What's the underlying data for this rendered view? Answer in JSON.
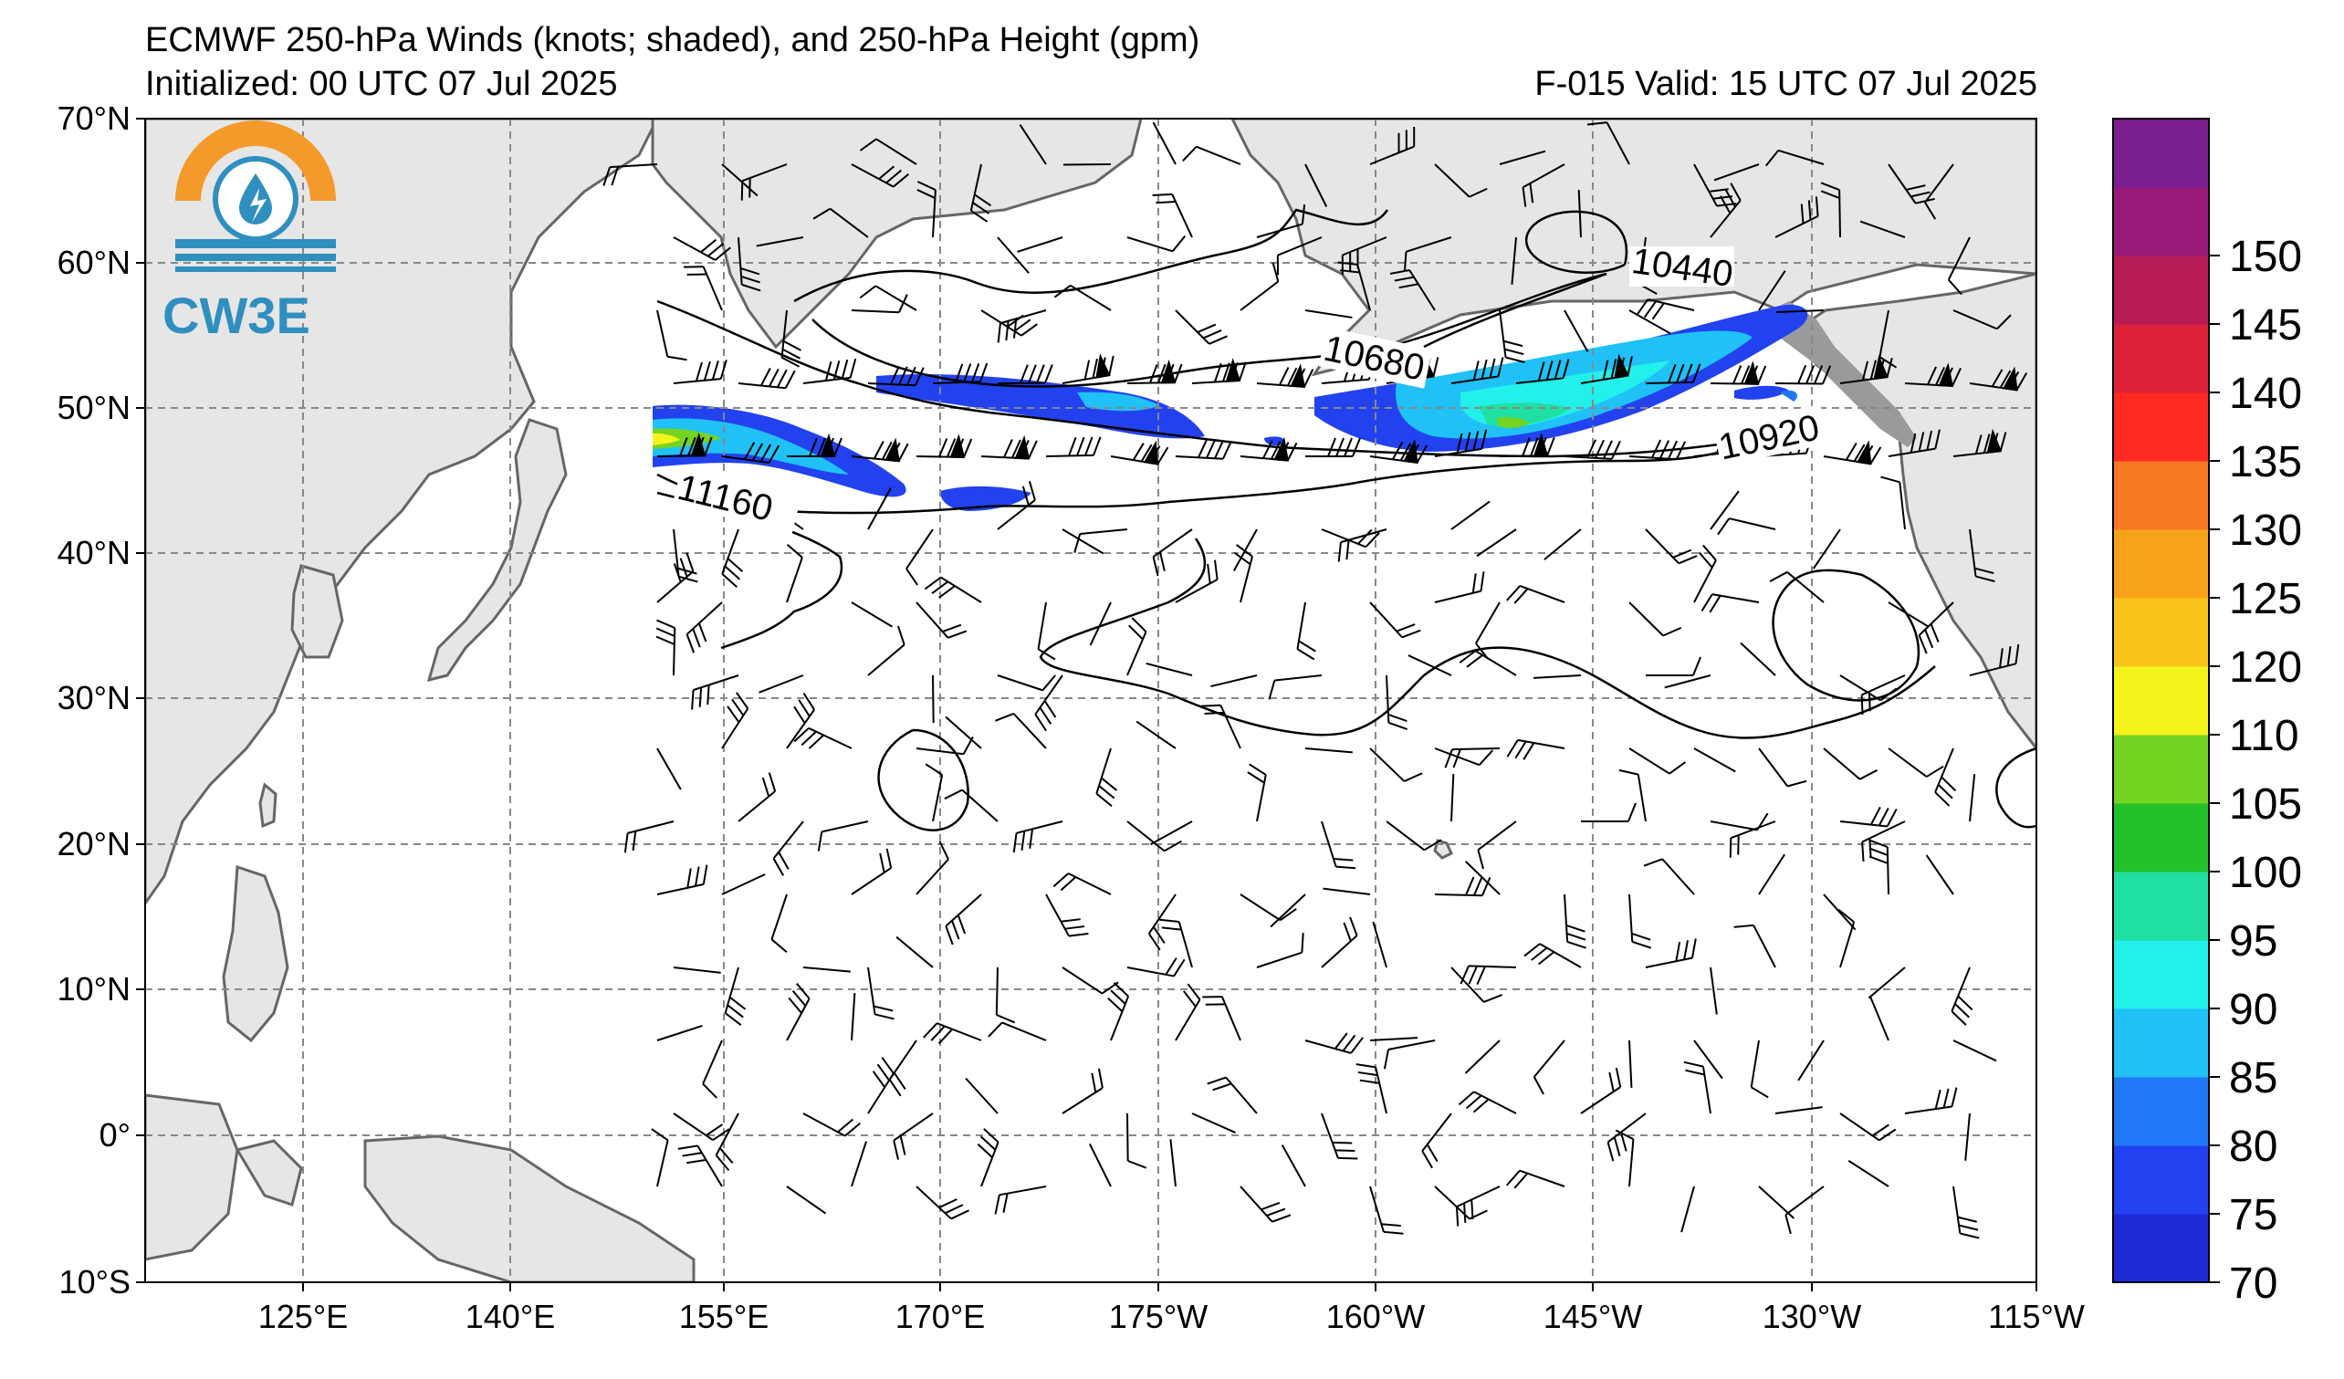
{
  "header": {
    "title": "ECMWF 250-hPa Winds (knots; shaded), and 250-hPa Height (gpm)",
    "initialized": "Initialized: 00 UTC 07 Jul 2025",
    "valid": "F-015  Valid: 15 UTC 07 Jul 2025"
  },
  "logo": {
    "text": "CW3E",
    "colors": {
      "orange": "#f39a2b",
      "blue": "#2f8fbf"
    }
  },
  "map": {
    "lat_labels": [
      "70°N",
      "60°N",
      "50°N",
      "40°N",
      "30°N",
      "20°N",
      "10°N",
      "0°",
      "10°S"
    ],
    "lon_labels": [
      "125°E",
      "140°E",
      "155°E",
      "170°E",
      "175°W",
      "160°W",
      "145°W",
      "130°W",
      "115°W"
    ],
    "contour_labels": [
      "10440",
      "10680",
      "10920",
      "11160"
    ],
    "land_color": "#e6e6e6",
    "coast_color": "#666666"
  },
  "colorbar": {
    "ticks": [
      "70",
      "75",
      "80",
      "85",
      "90",
      "95",
      "100",
      "105",
      "110",
      "120",
      "125",
      "130",
      "135",
      "140",
      "145",
      "150"
    ],
    "colors": [
      "#1c2bd6",
      "#2242f0",
      "#1f78f5",
      "#1fc1f6",
      "#22f0ea",
      "#1fe0a2",
      "#23c22a",
      "#74d421",
      "#f4f31c",
      "#f8c41a",
      "#f8a21a",
      "#f57a22",
      "#ff2a22",
      "#dc2138",
      "#b81c57",
      "#9a1a7a",
      "#7a1e90"
    ]
  }
}
